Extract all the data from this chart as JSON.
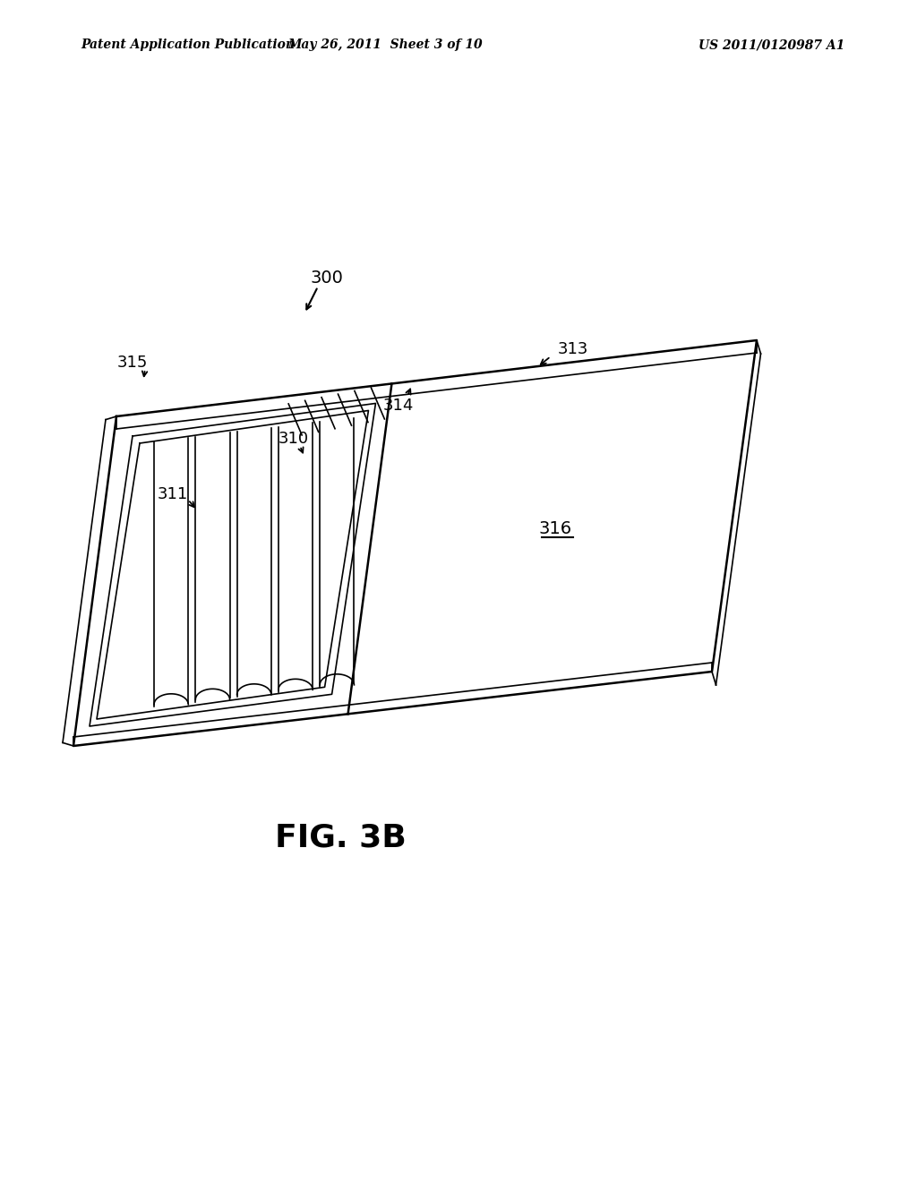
{
  "header_left": "Patent Application Publication",
  "header_mid": "May 26, 2011  Sheet 3 of 10",
  "header_right": "US 2011/0120987 A1",
  "fig_label": "FIG. 3B",
  "label_300": "300",
  "label_311": "311",
  "label_310": "310",
  "label_313": "313",
  "label_315": "315",
  "label_316": "316",
  "label_314": "314",
  "bg_color": "#ffffff",
  "line_color": "#000000"
}
